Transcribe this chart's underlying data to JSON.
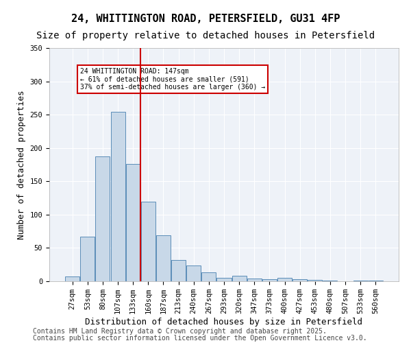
{
  "title1": "24, WHITTINGTON ROAD, PETERSFIELD, GU31 4FP",
  "title2": "Size of property relative to detached houses in Petersfield",
  "xlabel": "Distribution of detached houses by size in Petersfield",
  "ylabel": "Number of detached properties",
  "categories": [
    "27sqm",
    "53sqm",
    "80sqm",
    "107sqm",
    "133sqm",
    "160sqm",
    "187sqm",
    "213sqm",
    "240sqm",
    "267sqm",
    "293sqm",
    "320sqm",
    "347sqm",
    "373sqm",
    "400sqm",
    "427sqm",
    "453sqm",
    "480sqm",
    "507sqm",
    "533sqm",
    "560sqm"
  ],
  "values": [
    7,
    67,
    187,
    254,
    176,
    119,
    69,
    32,
    24,
    13,
    5,
    8,
    4,
    3,
    5,
    3,
    2,
    1,
    0,
    1,
    1
  ],
  "bar_color": "#c8d8e8",
  "bar_edge_color": "#5b8db8",
  "background_color": "#eef2f8",
  "vline_x": 4.5,
  "vline_color": "#cc0000",
  "annotation_title": "24 WHITTINGTON ROAD: 147sqm",
  "annotation_line1": "← 61% of detached houses are smaller (591)",
  "annotation_line2": "37% of semi-detached houses are larger (360) →",
  "annotation_box_color": "#cc0000",
  "footer1": "Contains HM Land Registry data © Crown copyright and database right 2025.",
  "footer2": "Contains public sector information licensed under the Open Government Licence v3.0.",
  "ylim": [
    0,
    350
  ],
  "yticks": [
    0,
    50,
    100,
    150,
    200,
    250,
    300,
    350
  ],
  "title1_fontsize": 11,
  "title2_fontsize": 10,
  "xlabel_fontsize": 9,
  "ylabel_fontsize": 9,
  "tick_fontsize": 7.5,
  "footer_fontsize": 7
}
